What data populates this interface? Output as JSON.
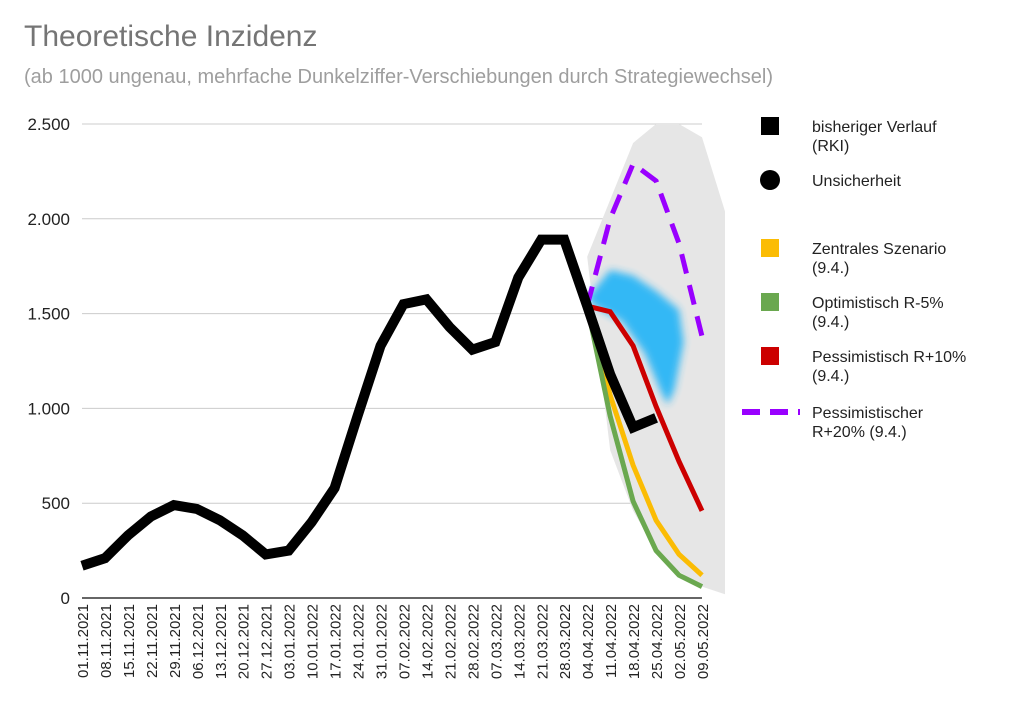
{
  "title": "Theoretische Inzidenz",
  "subtitle": "(ab 1000 ungenau, mehrfache Dunkelziffer-Verschiebungen durch Strategiewechsel)",
  "chart_data": {
    "type": "line",
    "title": "Theoretische Inzidenz",
    "subtitle": "(ab 1000 ungenau, mehrfache Dunkelziffer-Verschiebungen durch Strategiewechsel)",
    "xlabel": "",
    "ylabel": "",
    "ylim": [
      0,
      2500
    ],
    "y_ticks": [
      0,
      500,
      1000,
      1500,
      2000,
      2500
    ],
    "y_tick_labels": [
      "0",
      "500",
      "1.000",
      "1.500",
      "2.000",
      "2.500"
    ],
    "grid": true,
    "legend_position": "right",
    "categories": [
      "01.11.2021",
      "08.11.2021",
      "15.11.2021",
      "22.11.2021",
      "29.11.2021",
      "06.12.2021",
      "13.12.2021",
      "20.12.2021",
      "27.12.2021",
      "03.01.2022",
      "10.01.2022",
      "17.01.2022",
      "24.01.2022",
      "31.01.2022",
      "07.02.2022",
      "14.02.2022",
      "21.02.2022",
      "28.02.2022",
      "07.03.2022",
      "14.03.2022",
      "21.03.2022",
      "28.03.2022",
      "04.04.2022",
      "11.04.2022",
      "18.04.2022",
      "25.04.2022",
      "02.05.2022",
      "09.05.2022"
    ],
    "x_tick_labels": [
      "01.11.2021",
      "08.11.2021",
      "15.11.2021",
      "22.11.2021",
      "29.11.2021",
      "06.12.2021",
      "13.12.2021",
      "20.12.2021",
      "27.12.2021",
      "03.01.2022",
      "10.01.2022",
      "17.01.2022",
      "24.01.2022",
      "31.01.2022",
      "07.02.2022",
      "14.02.2022",
      "21.02.2022",
      "28.02.2022",
      "07.03.2022",
      "14.03.2022",
      "21.03.2022",
      "28.03.2022",
      "04.04.2022",
      "11.04.2022",
      "18.04.2022",
      "25.04.2022",
      "02.05.2022",
      "09.05.2022"
    ],
    "series": [
      {
        "name": "bisheriger Verlauf (RKI)",
        "color": "#000000",
        "dash": false,
        "values": [
          170,
          210,
          330,
          430,
          490,
          470,
          410,
          330,
          230,
          250,
          400,
          580,
          960,
          1330,
          1550,
          1575,
          1430,
          1310,
          1350,
          1690,
          1890,
          1890,
          1540,
          1180,
          900,
          950,
          null,
          null
        ]
      },
      {
        "name": "Zentrales Szenario (9.4.)",
        "color": "#fbbc04",
        "dash": false,
        "values": [
          null,
          null,
          null,
          null,
          null,
          null,
          null,
          null,
          null,
          null,
          null,
          null,
          null,
          null,
          null,
          null,
          null,
          null,
          null,
          null,
          null,
          null,
          1540,
          1070,
          700,
          410,
          230,
          120
        ]
      },
      {
        "name": "Optimistisch R-5% (9.4.)",
        "color": "#6aa84f",
        "dash": false,
        "values": [
          null,
          null,
          null,
          null,
          null,
          null,
          null,
          null,
          null,
          null,
          null,
          null,
          null,
          null,
          null,
          null,
          null,
          null,
          null,
          null,
          null,
          null,
          1540,
          960,
          510,
          250,
          120,
          60
        ]
      },
      {
        "name": "Pessimistisch R+10% (9.4.)",
        "color": "#cc0000",
        "dash": false,
        "values": [
          null,
          null,
          null,
          null,
          null,
          null,
          null,
          null,
          null,
          null,
          null,
          null,
          null,
          null,
          null,
          null,
          null,
          null,
          null,
          null,
          null,
          null,
          1540,
          1510,
          1330,
          1010,
          720,
          460
        ]
      },
      {
        "name": "Pessimistischer R+20% (9.4.)",
        "color": "#9900ff",
        "dash": true,
        "values": [
          null,
          null,
          null,
          null,
          null,
          null,
          null,
          null,
          null,
          null,
          null,
          null,
          null,
          null,
          null,
          null,
          null,
          null,
          null,
          null,
          null,
          null,
          1540,
          2000,
          2290,
          2200,
          1870,
          1380
        ]
      }
    ],
    "uncertainty_band": {
      "name": "Unsicherheit",
      "color": "#e6e6e6",
      "start_index": 21,
      "upper": [
        1890,
        1800,
        2100,
        2400,
        2500,
        2500,
        2430,
        2040
      ],
      "lower": [
        1890,
        1800,
        780,
        460,
        250,
        140,
        60,
        20
      ]
    },
    "blue_region": {
      "color": "#29b6f6",
      "points": [
        [
          22,
          1580
        ],
        [
          23,
          1730
        ],
        [
          24,
          1700
        ],
        [
          25,
          1620
        ],
        [
          26,
          1520
        ],
        [
          26.2,
          1350
        ],
        [
          25.8,
          1100
        ],
        [
          25.5,
          1020
        ],
        [
          25.2,
          1090
        ],
        [
          24.5,
          1290
        ],
        [
          23.5,
          1460
        ],
        [
          22.3,
          1540
        ]
      ]
    },
    "legend": [
      {
        "label": "bisheriger Verlauf (RKI)",
        "marker": "square",
        "color": "#000000"
      },
      {
        "label": "Unsicherheit",
        "marker": "circle",
        "color": "#000000"
      },
      {
        "label": "Zentrales Szenario (9.4.)",
        "marker": "square",
        "color": "#fbbc04"
      },
      {
        "label": "Optimistisch R-5% (9.4.)",
        "marker": "square",
        "color": "#6aa84f"
      },
      {
        "label": "Pessimistisch R+10% (9.4.)",
        "marker": "square",
        "color": "#cc0000"
      },
      {
        "label": "Pessimistischer R+20% (9.4.)",
        "marker": "dash-line",
        "color": "#9900ff"
      }
    ]
  },
  "legend_text": [
    [
      "bisheriger Verlauf",
      "(RKI)"
    ],
    [
      "Unsicherheit"
    ],
    [
      "Zentrales Szenario",
      "(9.4.)"
    ],
    [
      "Optimistisch R-5%",
      "(9.4.)"
    ],
    [
      "Pessimistisch R+10%",
      "(9.4.)"
    ],
    [
      "Pessimistischer",
      "R+20% (9.4.)"
    ]
  ]
}
